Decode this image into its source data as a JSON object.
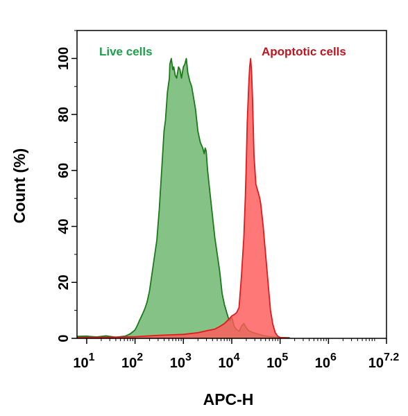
{
  "chart_data": {
    "type": "area",
    "xlabel": "APC-H",
    "ylabel": "Count  (%)",
    "x_scale": "log10",
    "xlim_log": [
      0.8,
      7.2
    ],
    "ylim": [
      0,
      110
    ],
    "grid": false,
    "x_ticks": [
      {
        "value_log": 1,
        "base": "10",
        "exp": "1"
      },
      {
        "value_log": 2,
        "base": "10",
        "exp": "2"
      },
      {
        "value_log": 3,
        "base": "10",
        "exp": "3"
      },
      {
        "value_log": 4,
        "base": "10",
        "exp": "4"
      },
      {
        "value_log": 5,
        "base": "10",
        "exp": "5"
      },
      {
        "value_log": 6,
        "base": "10",
        "exp": "6"
      },
      {
        "value_log": 7.2,
        "base": "10",
        "exp": "7.2"
      }
    ],
    "y_ticks": [
      0,
      20,
      40,
      60,
      80,
      100
    ],
    "series": [
      {
        "name": "Live cells",
        "line_color": "#1a7a1a",
        "fill_color": "#5cad5c",
        "fill_opacity": 0.75,
        "label_color": "#1e9e4a",
        "points": [
          [
            0.8,
            0.7
          ],
          [
            1.0,
            0.8
          ],
          [
            1.2,
            0.5
          ],
          [
            1.4,
            0.9
          ],
          [
            1.6,
            0.4
          ],
          [
            1.8,
            0.8
          ],
          [
            1.9,
            1.6
          ],
          [
            2.0,
            3.0
          ],
          [
            2.05,
            4.7
          ],
          [
            2.1,
            6.7
          ],
          [
            2.15,
            8.5
          ],
          [
            2.2,
            10.5
          ],
          [
            2.25,
            13
          ],
          [
            2.3,
            17
          ],
          [
            2.35,
            23
          ],
          [
            2.4,
            29
          ],
          [
            2.45,
            35
          ],
          [
            2.5,
            46
          ],
          [
            2.55,
            60
          ],
          [
            2.6,
            74
          ],
          [
            2.63,
            78
          ],
          [
            2.67,
            88
          ],
          [
            2.71,
            93
          ],
          [
            2.72,
            98
          ],
          [
            2.75,
            100
          ],
          [
            2.78,
            96
          ],
          [
            2.8,
            97
          ],
          [
            2.83,
            94
          ],
          [
            2.86,
            93
          ],
          [
            2.9,
            97
          ],
          [
            2.93,
            96
          ],
          [
            2.96,
            93
          ],
          [
            3.0,
            97
          ],
          [
            3.03,
            98
          ],
          [
            3.06,
            100
          ],
          [
            3.09,
            95
          ],
          [
            3.13,
            92
          ],
          [
            3.17,
            90
          ],
          [
            3.2,
            87
          ],
          [
            3.25,
            82
          ],
          [
            3.3,
            74
          ],
          [
            3.35,
            70
          ],
          [
            3.4,
            68
          ],
          [
            3.43,
            66
          ],
          [
            3.45,
            68
          ],
          [
            3.47,
            67
          ],
          [
            3.5,
            60
          ],
          [
            3.55,
            52
          ],
          [
            3.6,
            44
          ],
          [
            3.65,
            36
          ],
          [
            3.7,
            30
          ],
          [
            3.75,
            24
          ],
          [
            3.8,
            16
          ],
          [
            3.85,
            12
          ],
          [
            3.9,
            9
          ],
          [
            3.95,
            6.2
          ],
          [
            4.0,
            7.6
          ],
          [
            4.05,
            4.3
          ],
          [
            4.1,
            3.1
          ],
          [
            4.15,
            2.5
          ],
          [
            4.2,
            4.3
          ],
          [
            4.25,
            5.3
          ],
          [
            4.3,
            3.8
          ],
          [
            4.35,
            2.7
          ],
          [
            4.45,
            2.0
          ],
          [
            4.55,
            1.5
          ],
          [
            4.65,
            1.0
          ],
          [
            4.8,
            0.6
          ],
          [
            5.0,
            0.3
          ],
          [
            5.2,
            0.2
          ]
        ]
      },
      {
        "name": "Apoptotic cells",
        "line_color": "#e01a1a",
        "fill_color": "#ff5a5a",
        "fill_opacity": 0.82,
        "label_color": "#c0141e",
        "points": [
          [
            0.8,
            0.3
          ],
          [
            1.5,
            0.4
          ],
          [
            2.0,
            0.6
          ],
          [
            2.5,
            1.1
          ],
          [
            3.0,
            1.4
          ],
          [
            3.3,
            2.0
          ],
          [
            3.5,
            2.8
          ],
          [
            3.65,
            3.3
          ],
          [
            3.75,
            4.2
          ],
          [
            3.85,
            5.3
          ],
          [
            3.95,
            7.0
          ],
          [
            4.0,
            8.0
          ],
          [
            4.05,
            8.5
          ],
          [
            4.1,
            9.2
          ],
          [
            4.15,
            11
          ],
          [
            4.2,
            22
          ],
          [
            4.25,
            36
          ],
          [
            4.28,
            50
          ],
          [
            4.3,
            62
          ],
          [
            4.32,
            77
          ],
          [
            4.35,
            90
          ],
          [
            4.37,
            97
          ],
          [
            4.39,
            100
          ],
          [
            4.41,
            95
          ],
          [
            4.43,
            85
          ],
          [
            4.46,
            65
          ],
          [
            4.5,
            55
          ],
          [
            4.55,
            52
          ],
          [
            4.58,
            50
          ],
          [
            4.6,
            48
          ],
          [
            4.65,
            40
          ],
          [
            4.7,
            30
          ],
          [
            4.75,
            20
          ],
          [
            4.8,
            10
          ],
          [
            4.85,
            5
          ],
          [
            4.9,
            2
          ],
          [
            4.95,
            0.8
          ],
          [
            5.0,
            0.3
          ],
          [
            5.2,
            0.1
          ]
        ]
      }
    ]
  }
}
